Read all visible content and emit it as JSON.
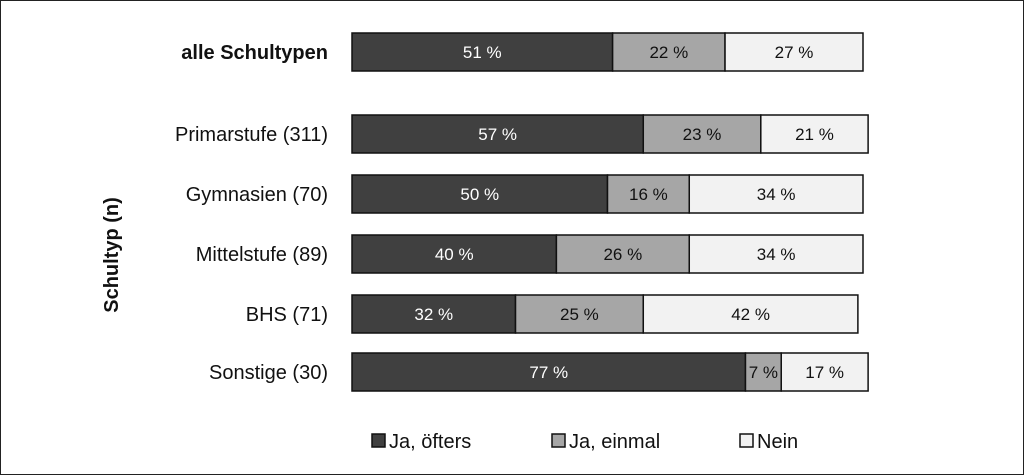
{
  "chart_data": {
    "type": "bar",
    "stacked": true,
    "orientation": "horizontal",
    "ylabel": "Schultyp (n)",
    "xlim": [
      0,
      100
    ],
    "unit": "%",
    "categories": [
      "alle Schultypen",
      "Primarstufe (311)",
      "Gymnasien (70)",
      "Mittelstufe (89)",
      "BHS (71)",
      "Sonstige (30)"
    ],
    "bold_categories": [
      "alle Schultypen"
    ],
    "series": [
      {
        "name": "Ja, öfters",
        "color": "#404040",
        "values": [
          51,
          57,
          50,
          40,
          32,
          77
        ]
      },
      {
        "name": "Ja, einmal",
        "color": "#a6a6a6",
        "values": [
          22,
          23,
          16,
          26,
          25,
          7
        ]
      },
      {
        "name": "Nein",
        "color": "#f2f2f2",
        "values": [
          27,
          21,
          34,
          34,
          42,
          17
        ]
      }
    ],
    "legend_position": "bottom",
    "grid": false
  }
}
